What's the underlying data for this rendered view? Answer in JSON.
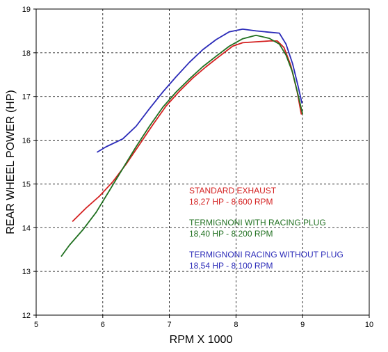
{
  "chart_data": {
    "type": "line",
    "xlabel": "RPM X 1000",
    "ylabel": "REAR WHEEL POWER (HP)",
    "xlim": [
      5,
      10
    ],
    "ylim": [
      12,
      19
    ],
    "x_ticks": [
      "5",
      "6",
      "7",
      "8",
      "9",
      "10"
    ],
    "y_ticks": [
      "12",
      "13",
      "14",
      "15",
      "16",
      "17",
      "18",
      "19"
    ],
    "grid": true,
    "grid_style": "dashed",
    "legend_placement": "center-right",
    "series": [
      {
        "name": "STANDARD EXHAUST",
        "summary": "18,27 HP - 8.600 RPM",
        "color": "#d42020",
        "points": [
          [
            5.55,
            14.15
          ],
          [
            5.75,
            14.45
          ],
          [
            5.95,
            14.72
          ],
          [
            6.15,
            15.05
          ],
          [
            6.35,
            15.45
          ],
          [
            6.55,
            15.9
          ],
          [
            6.75,
            16.35
          ],
          [
            6.95,
            16.78
          ],
          [
            7.15,
            17.12
          ],
          [
            7.35,
            17.42
          ],
          [
            7.55,
            17.68
          ],
          [
            7.75,
            17.92
          ],
          [
            7.95,
            18.15
          ],
          [
            8.1,
            18.23
          ],
          [
            8.3,
            18.25
          ],
          [
            8.5,
            18.27
          ],
          [
            8.62,
            18.27
          ],
          [
            8.72,
            18.12
          ],
          [
            8.82,
            17.72
          ],
          [
            8.92,
            17.1
          ],
          [
            8.98,
            16.6
          ]
        ]
      },
      {
        "name": "TERMIGNONI WITH RACING PLUG",
        "summary": "18,40 HP  - 8.200 RPM",
        "color": "#207020",
        "points": [
          [
            5.38,
            13.35
          ],
          [
            5.5,
            13.6
          ],
          [
            5.7,
            13.95
          ],
          [
            5.9,
            14.35
          ],
          [
            6.1,
            14.85
          ],
          [
            6.3,
            15.35
          ],
          [
            6.5,
            15.85
          ],
          [
            6.7,
            16.32
          ],
          [
            6.9,
            16.75
          ],
          [
            7.1,
            17.1
          ],
          [
            7.3,
            17.4
          ],
          [
            7.5,
            17.68
          ],
          [
            7.7,
            17.92
          ],
          [
            7.9,
            18.15
          ],
          [
            8.1,
            18.32
          ],
          [
            8.3,
            18.4
          ],
          [
            8.5,
            18.33
          ],
          [
            8.65,
            18.2
          ],
          [
            8.75,
            17.95
          ],
          [
            8.85,
            17.55
          ],
          [
            8.93,
            17.05
          ],
          [
            9.0,
            16.6
          ]
        ]
      },
      {
        "name": "TERMIGNONI RACING WITHOUT PLUG",
        "summary": "18,54 HP - 8.100 RPM",
        "color": "#2a2ab8",
        "points": [
          [
            5.92,
            15.73
          ],
          [
            6.05,
            15.85
          ],
          [
            6.3,
            16.03
          ],
          [
            6.5,
            16.32
          ],
          [
            6.7,
            16.72
          ],
          [
            6.9,
            17.1
          ],
          [
            7.1,
            17.45
          ],
          [
            7.3,
            17.78
          ],
          [
            7.5,
            18.07
          ],
          [
            7.7,
            18.3
          ],
          [
            7.9,
            18.48
          ],
          [
            8.1,
            18.54
          ],
          [
            8.3,
            18.5
          ],
          [
            8.5,
            18.47
          ],
          [
            8.65,
            18.45
          ],
          [
            8.75,
            18.2
          ],
          [
            8.85,
            17.75
          ],
          [
            8.93,
            17.25
          ],
          [
            8.99,
            16.85
          ]
        ]
      }
    ]
  }
}
